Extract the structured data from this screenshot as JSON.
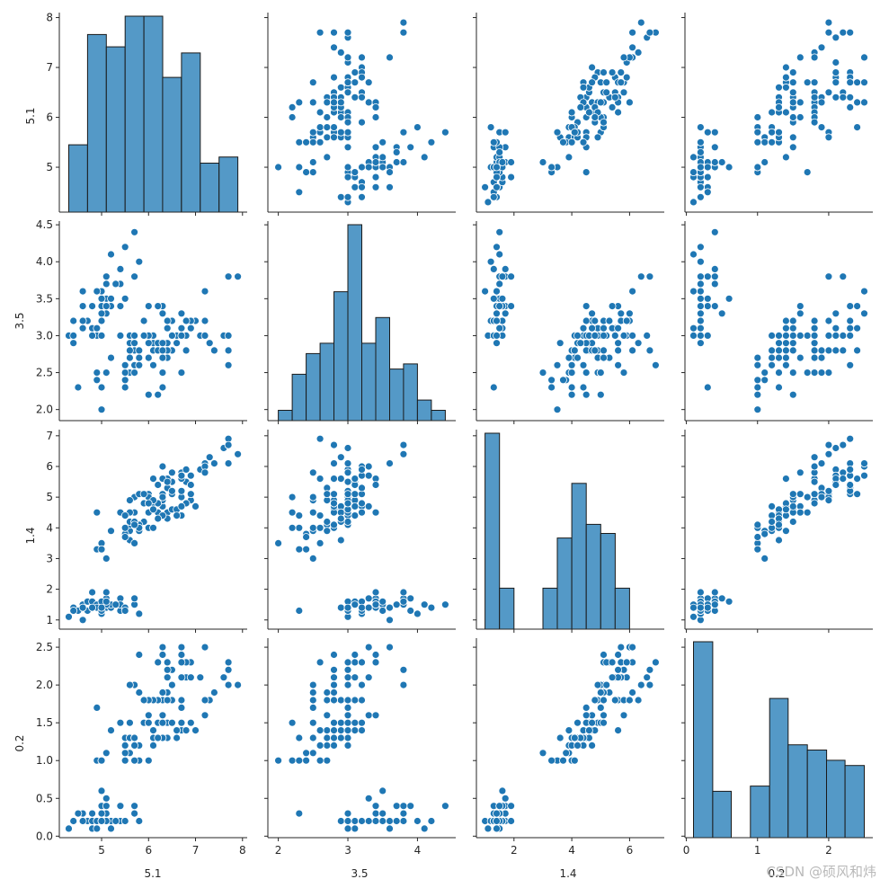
{
  "watermark": "CSDN @硕风和炜",
  "colors": {
    "point": "#1f77b4",
    "bar_fill": "#5499c7",
    "bar_edge": "#1a1a1a",
    "axis": "#262626"
  },
  "chart_data": {
    "type": "scatter",
    "layout": "pairplot",
    "variables": [
      "5.1",
      "3.5",
      "1.4",
      "0.2"
    ],
    "ranges": [
      [
        4.3,
        7.9
      ],
      [
        2.0,
        4.4
      ],
      [
        1.0,
        6.9
      ],
      [
        0.1,
        2.5
      ]
    ],
    "ticks": [
      [
        5,
        6,
        7,
        8
      ],
      [
        2.0,
        2.5,
        3.0,
        3.5,
        4.0,
        4.5
      ],
      [
        1,
        2,
        3,
        4,
        5,
        6,
        7
      ],
      [
        0.0,
        0.5,
        1.0,
        1.5,
        2.0,
        2.5
      ]
    ],
    "tick_labels": [
      [
        "5",
        "6",
        "7",
        "8"
      ],
      [
        "2.0",
        "2.5",
        "3.0",
        "3.5",
        "4.0",
        "4.5"
      ],
      [
        "1",
        "2",
        "3",
        "4",
        "5",
        "6",
        "7"
      ],
      [
        "0.0",
        "0.5",
        "1.0",
        "1.5",
        "2.0",
        "2.5"
      ]
    ],
    "x_tick_labels": [
      [
        "5",
        "6",
        "7",
        "8"
      ],
      [
        "2",
        "3",
        "4"
      ],
      [
        "2",
        "4",
        "6"
      ],
      [
        "0",
        "1",
        "2"
      ]
    ],
    "x_ticks": [
      [
        5,
        6,
        7,
        8
      ],
      [
        2,
        3,
        4
      ],
      [
        2,
        4,
        6
      ],
      [
        0,
        1,
        2
      ]
    ],
    "axis_limits": [
      [
        4.1,
        8.1
      ],
      [
        1.85,
        4.55
      ],
      [
        0.7,
        7.2
      ],
      [
        -0.02,
        2.62
      ]
    ],
    "histograms": [
      {
        "edges": [
          4.3,
          4.7,
          5.1,
          5.5,
          5.9,
          6.3,
          6.7,
          7.1,
          7.5,
          7.9
        ],
        "counts": [
          11,
          29,
          27,
          32,
          32,
          22,
          26,
          8,
          9
        ]
      },
      {
        "edges": [
          2.0,
          2.2,
          2.4,
          2.6,
          2.8,
          3.0,
          3.2,
          3.4,
          3.6,
          3.8,
          4.0,
          4.2,
          4.4
        ],
        "counts": [
          2,
          9,
          13,
          15,
          25,
          38,
          15,
          20,
          10,
          11,
          4,
          2
        ]
      },
      {
        "edges": [
          1.0,
          1.5,
          2.0,
          2.5,
          3.0,
          3.5,
          4.0,
          4.5,
          5.0,
          5.5,
          6.0,
          6.5,
          6.9
        ],
        "counts": [
          43,
          9,
          0,
          0,
          9,
          20,
          32,
          23,
          21,
          9,
          0,
          0
        ]
      },
      {
        "edges": [
          0.1,
          0.37,
          0.63,
          0.9,
          1.17,
          1.43,
          1.7,
          1.97,
          2.23,
          2.5
        ],
        "counts": [
          38,
          9,
          0,
          10,
          27,
          18,
          17,
          15,
          14
        ]
      }
    ],
    "points": [
      [
        4.9,
        3.0,
        1.4,
        0.2
      ],
      [
        4.7,
        3.2,
        1.3,
        0.2
      ],
      [
        4.6,
        3.1,
        1.5,
        0.2
      ],
      [
        5.0,
        3.6,
        1.4,
        0.2
      ],
      [
        5.4,
        3.9,
        1.7,
        0.4
      ],
      [
        4.6,
        3.4,
        1.4,
        0.3
      ],
      [
        5.0,
        3.4,
        1.5,
        0.2
      ],
      [
        4.4,
        2.9,
        1.4,
        0.2
      ],
      [
        4.9,
        3.1,
        1.5,
        0.1
      ],
      [
        5.4,
        3.7,
        1.5,
        0.2
      ],
      [
        4.8,
        3.4,
        1.6,
        0.2
      ],
      [
        4.8,
        3.0,
        1.4,
        0.1
      ],
      [
        4.3,
        3.0,
        1.1,
        0.1
      ],
      [
        5.8,
        4.0,
        1.2,
        0.2
      ],
      [
        5.7,
        4.4,
        1.5,
        0.4
      ],
      [
        5.4,
        3.9,
        1.3,
        0.4
      ],
      [
        5.1,
        3.5,
        1.4,
        0.3
      ],
      [
        5.7,
        3.8,
        1.7,
        0.3
      ],
      [
        5.1,
        3.8,
        1.5,
        0.3
      ],
      [
        5.4,
        3.4,
        1.7,
        0.2
      ],
      [
        5.1,
        3.7,
        1.5,
        0.4
      ],
      [
        4.6,
        3.6,
        1.0,
        0.2
      ],
      [
        5.1,
        3.3,
        1.7,
        0.5
      ],
      [
        4.8,
        3.4,
        1.9,
        0.2
      ],
      [
        5.0,
        3.0,
        1.6,
        0.2
      ],
      [
        5.0,
        3.4,
        1.6,
        0.4
      ],
      [
        5.2,
        3.5,
        1.5,
        0.2
      ],
      [
        5.2,
        3.4,
        1.4,
        0.2
      ],
      [
        4.7,
        3.2,
        1.6,
        0.2
      ],
      [
        4.8,
        3.1,
        1.6,
        0.2
      ],
      [
        5.4,
        3.4,
        1.5,
        0.4
      ],
      [
        5.2,
        4.1,
        1.5,
        0.1
      ],
      [
        5.5,
        4.2,
        1.4,
        0.2
      ],
      [
        4.9,
        3.1,
        1.5,
        0.2
      ],
      [
        5.0,
        3.2,
        1.2,
        0.2
      ],
      [
        5.5,
        3.5,
        1.3,
        0.2
      ],
      [
        4.9,
        3.6,
        1.4,
        0.1
      ],
      [
        4.4,
        3.0,
        1.3,
        0.2
      ],
      [
        5.1,
        3.4,
        1.5,
        0.2
      ],
      [
        5.0,
        3.5,
        1.3,
        0.3
      ],
      [
        4.5,
        2.3,
        1.3,
        0.3
      ],
      [
        4.4,
        3.2,
        1.3,
        0.2
      ],
      [
        5.0,
        3.5,
        1.6,
        0.6
      ],
      [
        5.1,
        3.8,
        1.9,
        0.4
      ],
      [
        4.8,
        3.0,
        1.4,
        0.3
      ],
      [
        5.1,
        3.8,
        1.6,
        0.2
      ],
      [
        4.6,
        3.2,
        1.4,
        0.2
      ],
      [
        5.3,
        3.7,
        1.5,
        0.2
      ],
      [
        5.0,
        3.3,
        1.4,
        0.2
      ],
      [
        7.0,
        3.2,
        4.7,
        1.4
      ],
      [
        6.4,
        3.2,
        4.5,
        1.5
      ],
      [
        6.9,
        3.1,
        4.9,
        1.5
      ],
      [
        5.5,
        2.3,
        4.0,
        1.3
      ],
      [
        6.5,
        2.8,
        4.6,
        1.5
      ],
      [
        5.7,
        2.8,
        4.5,
        1.3
      ],
      [
        6.3,
        3.3,
        4.7,
        1.6
      ],
      [
        4.9,
        2.4,
        3.3,
        1.0
      ],
      [
        6.6,
        2.9,
        4.6,
        1.3
      ],
      [
        5.2,
        2.7,
        3.9,
        1.4
      ],
      [
        5.0,
        2.0,
        3.5,
        1.0
      ],
      [
        5.9,
        3.0,
        4.2,
        1.5
      ],
      [
        6.0,
        2.2,
        4.0,
        1.0
      ],
      [
        6.1,
        2.9,
        4.7,
        1.4
      ],
      [
        5.6,
        2.9,
        3.6,
        1.3
      ],
      [
        6.7,
        3.1,
        4.4,
        1.4
      ],
      [
        5.6,
        3.0,
        4.5,
        1.5
      ],
      [
        5.8,
        2.7,
        4.1,
        1.0
      ],
      [
        6.2,
        2.2,
        4.5,
        1.5
      ],
      [
        5.6,
        2.5,
        3.9,
        1.1
      ],
      [
        5.9,
        3.2,
        4.8,
        1.8
      ],
      [
        6.1,
        2.8,
        4.0,
        1.3
      ],
      [
        6.3,
        2.5,
        4.9,
        1.5
      ],
      [
        6.1,
        2.8,
        4.7,
        1.2
      ],
      [
        6.4,
        2.9,
        4.3,
        1.3
      ],
      [
        6.6,
        3.0,
        4.4,
        1.4
      ],
      [
        6.8,
        2.8,
        4.8,
        1.4
      ],
      [
        6.7,
        3.0,
        5.0,
        1.7
      ],
      [
        6.0,
        2.9,
        4.5,
        1.5
      ],
      [
        5.7,
        2.6,
        3.5,
        1.0
      ],
      [
        5.5,
        2.4,
        3.8,
        1.1
      ],
      [
        5.5,
        2.4,
        3.7,
        1.0
      ],
      [
        5.8,
        2.7,
        3.9,
        1.2
      ],
      [
        6.0,
        2.7,
        5.1,
        1.6
      ],
      [
        5.4,
        3.0,
        4.5,
        1.5
      ],
      [
        6.0,
        3.4,
        4.5,
        1.6
      ],
      [
        6.7,
        3.1,
        4.7,
        1.5
      ],
      [
        6.3,
        2.3,
        4.4,
        1.3
      ],
      [
        5.6,
        3.0,
        4.1,
        1.3
      ],
      [
        5.5,
        2.5,
        4.0,
        1.3
      ],
      [
        5.5,
        2.6,
        4.4,
        1.2
      ],
      [
        6.1,
        3.0,
        4.6,
        1.4
      ],
      [
        5.8,
        2.6,
        4.0,
        1.2
      ],
      [
        5.0,
        2.3,
        3.3,
        1.0
      ],
      [
        5.6,
        2.7,
        4.2,
        1.3
      ],
      [
        5.7,
        3.0,
        4.2,
        1.2
      ],
      [
        5.7,
        2.9,
        4.2,
        1.3
      ],
      [
        6.2,
        2.9,
        4.3,
        1.3
      ],
      [
        5.1,
        2.5,
        3.0,
        1.1
      ],
      [
        5.7,
        2.8,
        4.1,
        1.3
      ],
      [
        6.3,
        3.3,
        6.0,
        2.5
      ],
      [
        5.8,
        2.7,
        5.1,
        1.9
      ],
      [
        7.1,
        3.0,
        5.9,
        2.1
      ],
      [
        6.3,
        2.9,
        5.6,
        1.8
      ],
      [
        6.5,
        3.0,
        5.8,
        2.2
      ],
      [
        7.6,
        3.0,
        6.6,
        2.1
      ],
      [
        4.9,
        2.5,
        4.5,
        1.7
      ],
      [
        7.3,
        2.9,
        6.3,
        1.8
      ],
      [
        6.7,
        2.5,
        5.8,
        1.8
      ],
      [
        7.2,
        3.6,
        6.1,
        2.5
      ],
      [
        6.5,
        3.2,
        5.1,
        2.0
      ],
      [
        6.4,
        2.7,
        5.3,
        1.9
      ],
      [
        6.8,
        3.0,
        5.5,
        2.1
      ],
      [
        5.7,
        2.5,
        5.0,
        2.0
      ],
      [
        5.8,
        2.8,
        5.1,
        2.4
      ],
      [
        6.4,
        3.2,
        5.3,
        2.3
      ],
      [
        6.5,
        3.0,
        5.5,
        1.8
      ],
      [
        7.7,
        3.8,
        6.7,
        2.2
      ],
      [
        7.7,
        2.6,
        6.9,
        2.3
      ],
      [
        6.0,
        2.2,
        5.0,
        1.5
      ],
      [
        6.9,
        3.2,
        5.7,
        2.3
      ],
      [
        5.6,
        2.8,
        4.9,
        2.0
      ],
      [
        7.7,
        2.8,
        6.7,
        2.0
      ],
      [
        6.3,
        2.7,
        4.9,
        1.8
      ],
      [
        6.7,
        3.3,
        5.7,
        2.1
      ],
      [
        7.2,
        3.2,
        6.0,
        1.8
      ],
      [
        6.2,
        2.8,
        4.8,
        1.8
      ],
      [
        6.1,
        3.0,
        4.9,
        1.8
      ],
      [
        6.4,
        2.8,
        5.6,
        2.1
      ],
      [
        7.2,
        3.0,
        5.8,
        1.6
      ],
      [
        7.4,
        2.8,
        6.1,
        1.9
      ],
      [
        7.9,
        3.8,
        6.4,
        2.0
      ],
      [
        6.4,
        2.8,
        5.6,
        2.2
      ],
      [
        6.3,
        2.8,
        5.1,
        1.5
      ],
      [
        6.1,
        2.6,
        5.6,
        1.4
      ],
      [
        7.7,
        3.0,
        6.1,
        2.3
      ],
      [
        6.3,
        3.4,
        5.6,
        2.4
      ],
      [
        6.4,
        3.1,
        5.5,
        1.8
      ],
      [
        6.0,
        3.0,
        4.8,
        1.8
      ],
      [
        6.9,
        3.1,
        5.4,
        2.1
      ],
      [
        6.7,
        3.1,
        5.6,
        2.4
      ],
      [
        6.9,
        3.1,
        5.1,
        2.3
      ],
      [
        5.8,
        2.7,
        5.1,
        1.9
      ],
      [
        6.8,
        3.2,
        5.9,
        2.3
      ],
      [
        6.7,
        3.3,
        5.7,
        2.5
      ],
      [
        6.7,
        3.0,
        5.2,
        2.3
      ],
      [
        6.3,
        2.5,
        5.0,
        1.9
      ],
      [
        6.5,
        3.0,
        5.2,
        2.0
      ],
      [
        6.2,
        3.4,
        5.4,
        2.3
      ],
      [
        5.9,
        3.0,
        5.1,
        1.8
      ]
    ]
  }
}
